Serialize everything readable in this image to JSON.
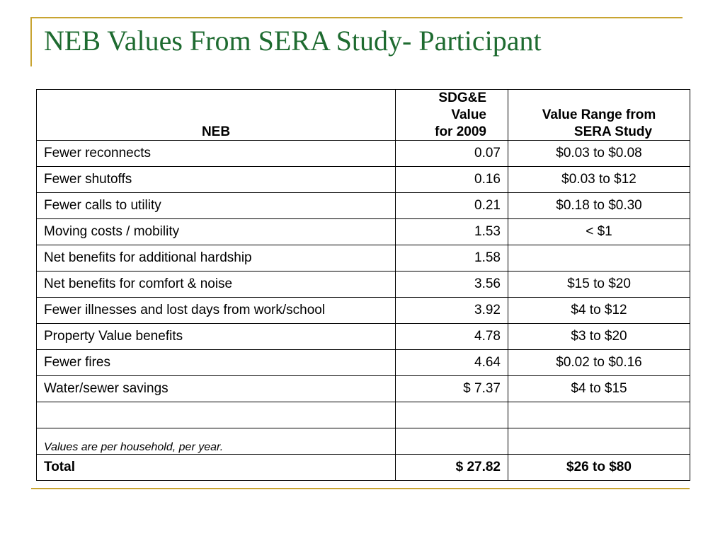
{
  "title": "NEB Values From SERA Study- Participant",
  "colors": {
    "title": "#1E6B30",
    "accent_rule": "#C8A431"
  },
  "table": {
    "headers": {
      "neb": "NEB",
      "sdge_lines": [
        "SDG&E",
        "Value",
        "for 2009"
      ],
      "range_lines": [
        "Value Range from",
        "SERA Study"
      ]
    },
    "rows": [
      {
        "neb": "Fewer reconnects",
        "value": "0.07",
        "range": "$0.03 to $0.08"
      },
      {
        "neb": "Fewer shutoffs",
        "value": "0.16",
        "range": "$0.03 to $12"
      },
      {
        "neb": "Fewer calls to utility",
        "value": "0.21",
        "range": "$0.18 to $0.30"
      },
      {
        "neb": "Moving costs / mobility",
        "value": "1.53",
        "range": "< $1"
      },
      {
        "neb": "Net benefits for additional hardship",
        "value": "1.58",
        "range": ""
      },
      {
        "neb": "Net benefits for comfort & noise",
        "value": "3.56",
        "range": "$15 to $20"
      },
      {
        "neb": "Fewer illnesses and lost days from work/school",
        "value": "3.92",
        "range": "$4 to $12"
      },
      {
        "neb": "Property Value benefits",
        "value": "4.78",
        "range": "$3 to $20"
      },
      {
        "neb": "Fewer fires",
        "value": "4.64",
        "range": "$0.02 to $0.16"
      },
      {
        "neb": "Water/sewer savings",
        "value": "$ 7.37",
        "range": "$4 to $15"
      },
      {
        "neb": "",
        "value": "",
        "range": ""
      }
    ],
    "note": "Values are per household, per year.",
    "total": {
      "label": "Total",
      "value": "$ 27.82",
      "range": "$26 to $80"
    }
  }
}
